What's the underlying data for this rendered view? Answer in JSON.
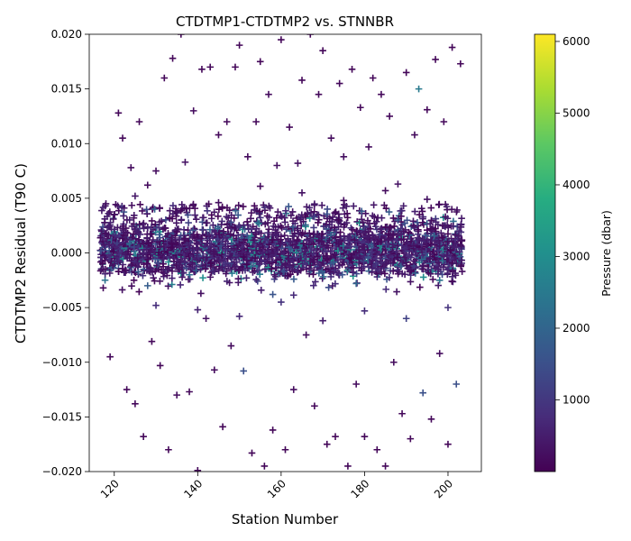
{
  "chart_data": {
    "type": "scatter",
    "title": "CTDTMP1-CTDTMP2 vs. STNNBR",
    "xlabel": "Station Number",
    "ylabel": "CTDTMP2 Residual (T90 C)",
    "xlim": [
      114,
      208
    ],
    "ylim": [
      -0.02,
      0.02
    ],
    "x_ticks": [
      "120",
      "140",
      "160",
      "180",
      "200"
    ],
    "y_ticks": [
      "−0.020",
      "−0.015",
      "−0.010",
      "−0.005",
      "0.000",
      "0.005",
      "0.010",
      "0.015",
      "0.020"
    ],
    "marker": "plus",
    "grid": false,
    "colorbar": {
      "label": "Pressure (dbar)",
      "range": [
        0,
        6100
      ],
      "ticks": [
        "1000",
        "2000",
        "3000",
        "4000",
        "5000",
        "6000"
      ],
      "colormap": "viridis"
    },
    "x_range_data": [
      117,
      203
    ],
    "series": [
      {
        "points": [
          [
            118,
            0.0045,
            300
          ],
          [
            119,
            -0.0095,
            150
          ],
          [
            120,
            0.0035,
            200
          ],
          [
            121,
            0.0128,
            100
          ],
          [
            122,
            0.0105,
            150
          ],
          [
            123,
            -0.0125,
            100
          ],
          [
            124,
            0.0078,
            200
          ],
          [
            125,
            -0.0138,
            150
          ],
          [
            126,
            0.012,
            100
          ],
          [
            127,
            -0.0168,
            100
          ],
          [
            128,
            0.0062,
            200
          ],
          [
            129,
            -0.0081,
            150
          ],
          [
            130,
            0.0075,
            200
          ],
          [
            131,
            -0.0103,
            100
          ],
          [
            132,
            0.016,
            100
          ],
          [
            133,
            -0.018,
            100
          ],
          [
            134,
            0.0178,
            150
          ],
          [
            135,
            -0.013,
            200
          ],
          [
            136,
            0.02,
            100
          ],
          [
            137,
            0.0083,
            300
          ],
          [
            138,
            -0.0127,
            150
          ],
          [
            139,
            0.013,
            200
          ],
          [
            140,
            -0.0199,
            100
          ],
          [
            141,
            0.0168,
            100
          ],
          [
            142,
            -0.006,
            300
          ],
          [
            143,
            0.017,
            100
          ],
          [
            144,
            -0.0107,
            200
          ],
          [
            145,
            0.0108,
            150
          ],
          [
            146,
            -0.0159,
            100
          ],
          [
            147,
            0.012,
            150
          ],
          [
            148,
            -0.0085,
            200
          ],
          [
            149,
            0.017,
            100
          ],
          [
            150,
            0.019,
            100
          ],
          [
            151,
            -0.0108,
            1500
          ],
          [
            152,
            0.0088,
            200
          ],
          [
            153,
            -0.0183,
            100
          ],
          [
            154,
            0.012,
            150
          ],
          [
            155,
            0.0175,
            100
          ],
          [
            156,
            -0.0195,
            100
          ],
          [
            157,
            0.0145,
            200
          ],
          [
            158,
            -0.0162,
            100
          ],
          [
            159,
            0.008,
            300
          ],
          [
            160,
            0.0195,
            100
          ],
          [
            161,
            -0.018,
            100
          ],
          [
            162,
            0.0115,
            150
          ],
          [
            163,
            -0.0125,
            200
          ],
          [
            164,
            0.0082,
            300
          ],
          [
            165,
            0.0158,
            100
          ],
          [
            166,
            -0.0075,
            250
          ],
          [
            167,
            0.02,
            100
          ],
          [
            168,
            -0.014,
            150
          ],
          [
            169,
            0.0145,
            150
          ],
          [
            170,
            0.0185,
            100
          ],
          [
            171,
            -0.0175,
            100
          ],
          [
            172,
            0.0105,
            200
          ],
          [
            173,
            -0.0168,
            150
          ],
          [
            174,
            0.0155,
            150
          ],
          [
            175,
            0.0088,
            250
          ],
          [
            176,
            -0.0195,
            100
          ],
          [
            177,
            0.0168,
            100
          ],
          [
            178,
            -0.012,
            200
          ],
          [
            179,
            0.0133,
            150
          ],
          [
            180,
            -0.0168,
            100
          ],
          [
            181,
            0.0097,
            200
          ],
          [
            182,
            0.016,
            100
          ],
          [
            183,
            -0.018,
            100
          ],
          [
            184,
            0.0145,
            150
          ],
          [
            185,
            -0.0195,
            100
          ],
          [
            186,
            0.0125,
            150
          ],
          [
            187,
            -0.01,
            200
          ],
          [
            188,
            0.0063,
            300
          ],
          [
            189,
            -0.0147,
            150
          ],
          [
            190,
            0.0165,
            100
          ],
          [
            191,
            -0.017,
            150
          ],
          [
            192,
            0.0108,
            200
          ],
          [
            193,
            0.015,
            2500
          ],
          [
            194,
            -0.0128,
            1500
          ],
          [
            195,
            0.0131,
            150
          ],
          [
            196,
            -0.0152,
            100
          ],
          [
            197,
            0.0177,
            100
          ],
          [
            198,
            -0.0092,
            200
          ],
          [
            199,
            0.012,
            150
          ],
          [
            200,
            -0.0175,
            100
          ],
          [
            201,
            0.0188,
            100
          ],
          [
            202,
            -0.012,
            1500
          ],
          [
            203,
            0.0173,
            100
          ],
          [
            125,
            0.0052,
            400
          ],
          [
            130,
            -0.0048,
            800
          ],
          [
            135,
            0.0038,
            300
          ],
          [
            140,
            -0.0052,
            600
          ],
          [
            145,
            0.0046,
            250
          ],
          [
            150,
            -0.0058,
            700
          ],
          [
            155,
            0.0061,
            200
          ],
          [
            160,
            -0.0045,
            900
          ],
          [
            165,
            0.0055,
            300
          ],
          [
            170,
            -0.0062,
            500
          ],
          [
            175,
            0.0048,
            250
          ],
          [
            180,
            -0.0053,
            800
          ],
          [
            185,
            0.0057,
            200
          ],
          [
            190,
            -0.006,
            1200
          ],
          [
            195,
            0.0049,
            300
          ],
          [
            200,
            -0.005,
            900
          ],
          [
            128,
            -0.003,
            1800
          ],
          [
            138,
            -0.002,
            2200
          ],
          [
            148,
            0.0028,
            1400
          ],
          [
            158,
            -0.0038,
            1600
          ],
          [
            168,
            0.0033,
            1200
          ],
          [
            178,
            -0.0028,
            2000
          ],
          [
            188,
            0.003,
            1700
          ],
          [
            198,
            -0.0025,
            2300
          ]
        ],
        "band": {
          "center": 0.0002,
          "spread": 0.0012,
          "per_station": 22,
          "wide_per_station": 8,
          "wide_spread": 0.004
        }
      }
    ]
  }
}
